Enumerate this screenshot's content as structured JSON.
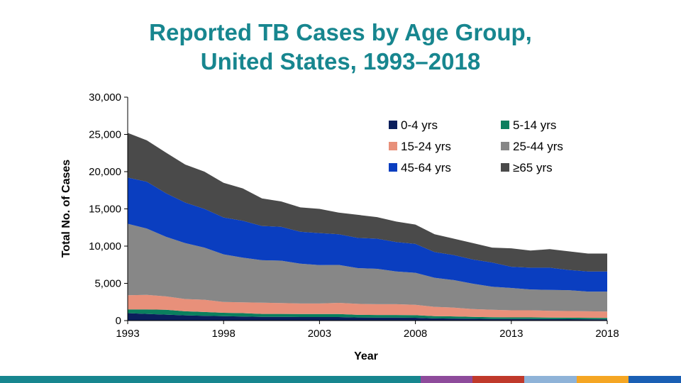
{
  "title_lines": [
    "Reported TB Cases by Age Group,",
    "United States, 1993–2018"
  ],
  "chart_data": {
    "type": "area",
    "stacked": true,
    "title": "Reported TB Cases by Age Group, United States, 1993–2018",
    "xlabel": "Year",
    "ylabel": "Total No. of Cases",
    "xlim": [
      1993,
      2018
    ],
    "ylim": [
      0,
      30000
    ],
    "x_ticks": [
      1993,
      1998,
      2003,
      2008,
      2013,
      2018
    ],
    "y_ticks": [
      0,
      5000,
      10000,
      15000,
      20000,
      25000,
      30000
    ],
    "y_tick_labels": [
      "0",
      "5,000",
      "10,000",
      "15,000",
      "20,000",
      "25,000",
      "30,000"
    ],
    "x_tick_labels": [
      "1993",
      "1998",
      "2003",
      "2008",
      "2013",
      "2018"
    ],
    "legend_position": "top-right",
    "grid": false,
    "x": [
      1993,
      1994,
      1995,
      1996,
      1997,
      1998,
      1999,
      2000,
      2001,
      2002,
      2003,
      2004,
      2005,
      2006,
      2007,
      2008,
      2009,
      2010,
      2011,
      2012,
      2013,
      2014,
      2015,
      2016,
      2017,
      2018
    ],
    "series": [
      {
        "name": "0-4 yrs",
        "color": "#0b1f5c",
        "values": [
          1000,
          900,
          800,
          700,
          650,
          600,
          550,
          500,
          500,
          480,
          480,
          480,
          420,
          400,
          400,
          380,
          300,
          280,
          250,
          220,
          210,
          210,
          200,
          190,
          180,
          170
        ]
      },
      {
        "name": "5-14 yrs",
        "color": "#0a7f5e",
        "values": [
          500,
          600,
          650,
          550,
          500,
          450,
          450,
          400,
          400,
          400,
          400,
          400,
          350,
          350,
          350,
          340,
          300,
          280,
          250,
          230,
          220,
          220,
          210,
          200,
          190,
          180
        ]
      },
      {
        "name": "15-24 yrs",
        "color": "#e8907a",
        "values": [
          1900,
          1950,
          1800,
          1650,
          1650,
          1450,
          1450,
          1500,
          1450,
          1420,
          1420,
          1500,
          1480,
          1450,
          1450,
          1400,
          1250,
          1180,
          1050,
          1000,
          950,
          950,
          900,
          900,
          880,
          870
        ]
      },
      {
        "name": "25-44 yrs",
        "color": "#878787",
        "values": [
          9600,
          8900,
          8000,
          7500,
          7000,
          6400,
          6000,
          5700,
          5700,
          5350,
          5150,
          5100,
          4800,
          4750,
          4400,
          4300,
          3900,
          3700,
          3400,
          3100,
          3000,
          2800,
          2800,
          2800,
          2650,
          2680
        ]
      },
      {
        "name": "45-64 yrs",
        "color": "#0a3ec0",
        "values": [
          6200,
          6300,
          5850,
          5450,
          5200,
          4950,
          4950,
          4600,
          4550,
          4280,
          4300,
          4120,
          4050,
          4050,
          3950,
          3880,
          3450,
          3360,
          3250,
          3250,
          2850,
          2920,
          2990,
          2710,
          2700,
          2700
        ]
      },
      {
        "name": "≥65 yrs",
        "color": "#4a4a4a",
        "values": [
          6000,
          5550,
          5450,
          5100,
          5000,
          4650,
          4350,
          3700,
          3400,
          3270,
          3250,
          2900,
          3100,
          2900,
          2750,
          2600,
          2400,
          2200,
          2200,
          2000,
          2470,
          2300,
          2500,
          2500,
          2400,
          2400
        ]
      }
    ]
  },
  "bottom_bar_colors": [
    "#17868f",
    "#8e4b9b",
    "#c0392b",
    "#8fb3d8",
    "#f5a623",
    "#1a5fb4"
  ]
}
